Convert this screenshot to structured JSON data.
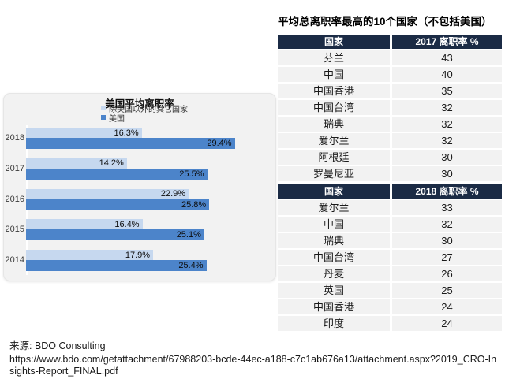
{
  "colors": {
    "bar_other": "#c6d8ef",
    "bar_us": "#4c84ca",
    "table_header_bg": "#1b2b45",
    "row_bg": "#f2f2f2",
    "panel_bg": "#f2f2f2"
  },
  "chart_data": {
    "type": "bar",
    "orientation": "horizontal",
    "title": "美国平均离职率",
    "categories": [
      "2018",
      "2017",
      "2016",
      "2015",
      "2014"
    ],
    "series": [
      {
        "name": "除美国以外的其它国家",
        "color": "#c6d8ef",
        "values": [
          16.3,
          14.2,
          22.9,
          16.4,
          17.9
        ]
      },
      {
        "name": "美国",
        "color": "#4c84ca",
        "values": [
          29.4,
          25.5,
          25.8,
          25.1,
          25.4
        ]
      }
    ],
    "value_suffix": "%",
    "xlim": [
      0,
      35
    ],
    "grid": false,
    "legend_position": "top"
  },
  "right_table": {
    "title": "平均总离职率最高的10个国家（不包括美国）",
    "col_country": "国家",
    "tables": [
      {
        "value_header": "2017 离职率 %",
        "rows": [
          {
            "country": "芬兰",
            "value": "43"
          },
          {
            "country": "中国",
            "value": "40"
          },
          {
            "country": "中国香港",
            "value": "35"
          },
          {
            "country": "中国台湾",
            "value": "32"
          },
          {
            "country": "瑞典",
            "value": "32"
          },
          {
            "country": "爱尔兰",
            "value": "32"
          },
          {
            "country": "阿根廷",
            "value": "30"
          },
          {
            "country": "罗曼尼亚",
            "value": "30"
          }
        ]
      },
      {
        "value_header": "2018 离职率 %",
        "rows": [
          {
            "country": "爱尔兰",
            "value": "33"
          },
          {
            "country": "中国",
            "value": "32"
          },
          {
            "country": "瑞典",
            "value": "30"
          },
          {
            "country": "中国台湾",
            "value": "27"
          },
          {
            "country": "丹麦",
            "value": "26"
          },
          {
            "country": "英国",
            "value": "25"
          },
          {
            "country": "中国香港",
            "value": "24"
          },
          {
            "country": "印度",
            "value": "24"
          }
        ]
      }
    ]
  },
  "source": {
    "label": "来源: BDO Consulting",
    "url": "https://www.bdo.com/getattachment/67988203-bcde-44ec-a188-c7c1ab676a13/attachment.aspx?2019_CRO-Insights-Report_FINAL.pdf"
  }
}
